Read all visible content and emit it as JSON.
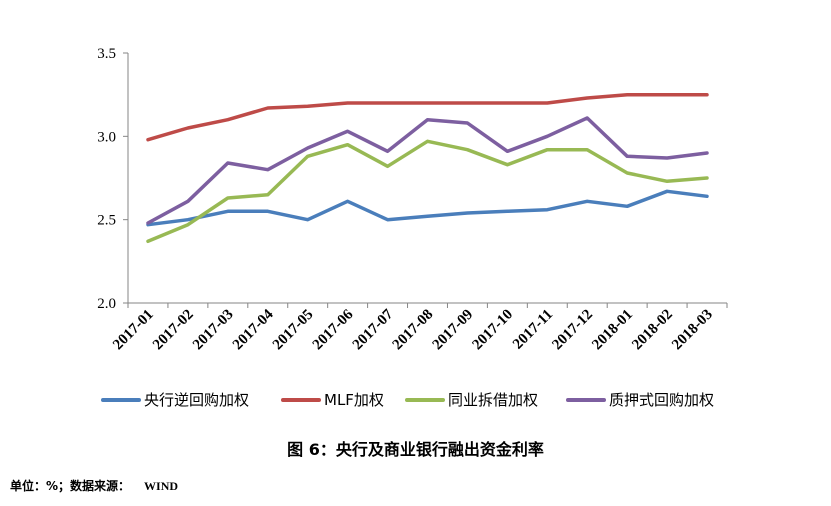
{
  "chart_data": {
    "type": "line",
    "categories": [
      "2017-01",
      "2017-02",
      "2017-03",
      "2017-04",
      "2017-05",
      "2017-06",
      "2017-07",
      "2017-08",
      "2017-09",
      "2017-10",
      "2017-11",
      "2017-12",
      "2018-01",
      "2018-02",
      "2018-03"
    ],
    "series": [
      {
        "name": "央行逆回购加权",
        "color": "#4a7ebb",
        "values": [
          2.47,
          2.5,
          2.55,
          2.55,
          2.5,
          2.61,
          2.5,
          2.52,
          2.54,
          2.55,
          2.56,
          2.61,
          2.58,
          2.67,
          2.64
        ]
      },
      {
        "name": "MLF加权",
        "color": "#be4b48",
        "values": [
          2.98,
          3.05,
          3.1,
          3.17,
          3.18,
          3.2,
          3.2,
          3.2,
          3.2,
          3.2,
          3.2,
          3.23,
          3.25,
          3.25,
          3.25
        ]
      },
      {
        "name": "同业拆借加权",
        "color": "#98b954",
        "values": [
          2.37,
          2.47,
          2.63,
          2.65,
          2.88,
          2.95,
          2.82,
          2.97,
          2.92,
          2.83,
          2.92,
          2.92,
          2.78,
          2.73,
          2.75
        ]
      },
      {
        "name": "质押式回购加权",
        "color": "#7d5fa0",
        "values": [
          2.48,
          2.61,
          2.84,
          2.8,
          2.93,
          3.03,
          2.91,
          3.1,
          3.08,
          2.91,
          3.0,
          3.11,
          2.88,
          2.87,
          2.9
        ]
      }
    ],
    "ylim": [
      2.0,
      3.5
    ],
    "yticks": [
      "2.0",
      "2.5",
      "3.0",
      "3.5"
    ],
    "legend_position": "bottom",
    "grid": false
  },
  "caption": "图 6：央行及商业银行融出资金利率",
  "source": {
    "label": "单位：%；数据来源：",
    "name": "WIND"
  }
}
